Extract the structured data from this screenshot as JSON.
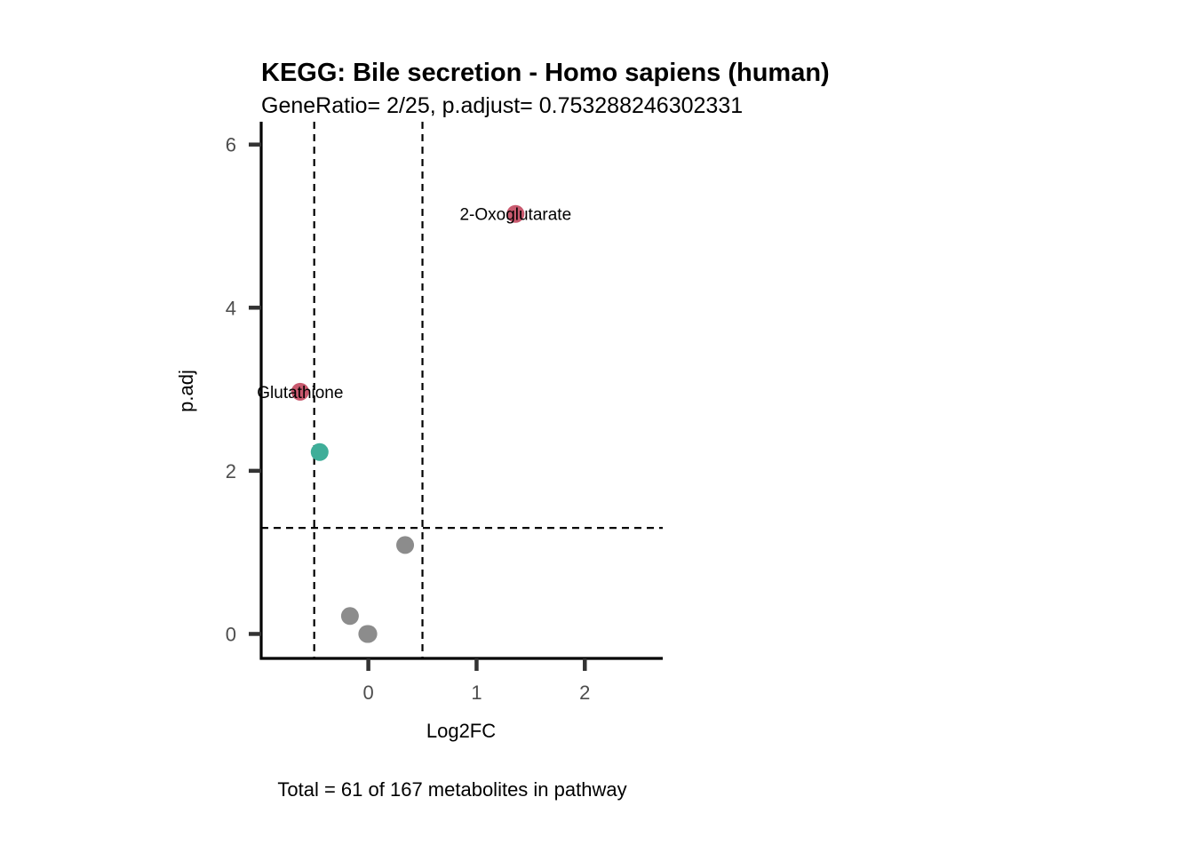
{
  "chart_data": {
    "type": "scatter",
    "title": "KEGG: Bile secretion - Homo sapiens (human)",
    "subtitle": "GeneRatio= 2/25, p.adjust= 0.753288246302331",
    "xlabel": "Log2FC",
    "ylabel": "p.adj",
    "caption": "Total = 61 of 167 metabolites in pathway",
    "xlim": [
      -0.99,
      2.72
    ],
    "ylim": [
      -0.3,
      6.28
    ],
    "xticks": [
      0,
      1,
      2
    ],
    "yticks": [
      0,
      2,
      4,
      6
    ],
    "grid": false,
    "vlines": [
      -0.5,
      0.5
    ],
    "hlines": [
      1.3
    ],
    "colors": {
      "up": "#c8596e",
      "down": "#3fae99",
      "ns": "#8c8c8c",
      "threshold_line": "#000000",
      "axis": "#000000",
      "tick_mark": "#333333"
    },
    "points": [
      {
        "x": 1.36,
        "y": 5.15,
        "group": "up",
        "label": "2-Oxoglutarate"
      },
      {
        "x": -0.63,
        "y": 2.97,
        "group": "up",
        "label": "Glutathione"
      },
      {
        "x": -0.45,
        "y": 2.23,
        "group": "down",
        "label": ""
      },
      {
        "x": 0.34,
        "y": 1.09,
        "group": "ns",
        "label": ""
      },
      {
        "x": -0.17,
        "y": 0.22,
        "group": "ns",
        "label": ""
      },
      {
        "x": -0.01,
        "y": 0.0,
        "group": "ns",
        "label": ""
      },
      {
        "x": 0.0,
        "y": 0.0,
        "group": "ns",
        "label": ""
      }
    ]
  }
}
